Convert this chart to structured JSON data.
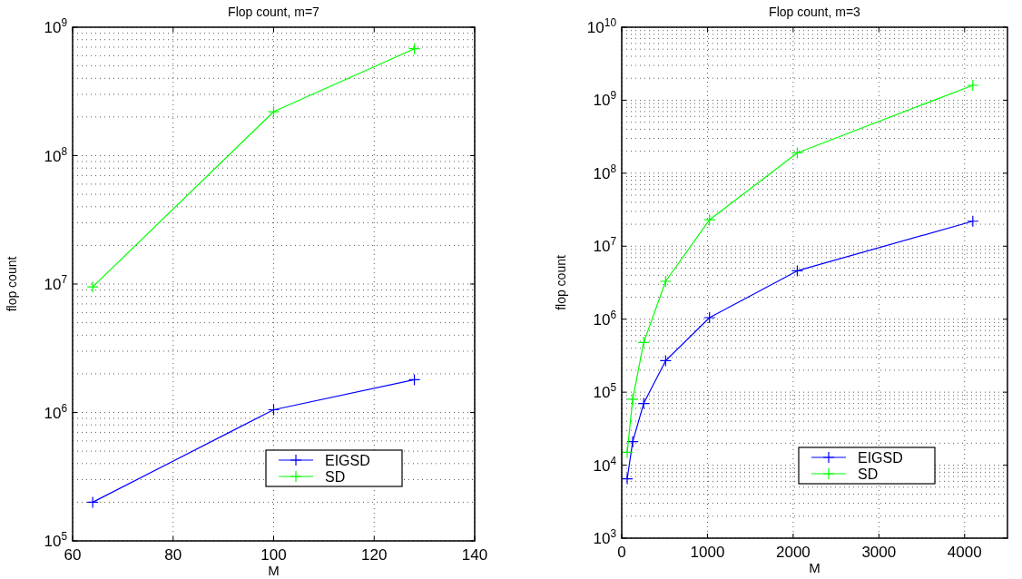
{
  "chart_data": [
    {
      "type": "line",
      "title": "Flop count, m=7",
      "xlabel": "M",
      "ylabel": "flop count",
      "log": "y",
      "grid": true,
      "legend": "bottom right",
      "marker": "cross",
      "line_style": "solid",
      "xlim": [
        60,
        140
      ],
      "xticks": [
        60,
        80,
        100,
        120,
        140
      ],
      "ylim": [
        100000,
        1000000000
      ],
      "yticks": [
        {
          "value": 100000,
          "label": "10$^{5}$"
        },
        {
          "value": 1000000,
          "label": "10$^{6}$"
        },
        {
          "value": 10000000,
          "label": "10$^{7}$"
        },
        {
          "value": 100000000,
          "label": "10$^{8}$"
        },
        {
          "value": 1000000000,
          "label": "10$^{9}$"
        }
      ],
      "x": [
        64,
        100,
        128
      ],
      "series": [
        {
          "name": "EIGSD",
          "color": "#0000ff",
          "values": [
            200000,
            1050000,
            1800000
          ]
        },
        {
          "name": "SD",
          "color": "#00ff00",
          "values": [
            9500000,
            220000000,
            680000000
          ]
        }
      ]
    },
    {
      "type": "line",
      "title": "Flop count, m=3",
      "xlabel": "M",
      "ylabel": "flop count",
      "log": "y",
      "grid": true,
      "legend": "bottom right",
      "marker": "cross",
      "line_style": "solid",
      "xlim": [
        0,
        4500
      ],
      "xticks": [
        0,
        1000,
        2000,
        3000,
        4000
      ],
      "ylim": [
        1000,
        10000000000
      ],
      "yticks": [
        {
          "value": 1000,
          "label": "10$^{3}$"
        },
        {
          "value": 10000,
          "label": "10$^{4}$"
        },
        {
          "value": 100000,
          "label": "10$^{5}$"
        },
        {
          "value": 1000000,
          "label": "10$^{6}$"
        },
        {
          "value": 10000000,
          "label": "10$^{7}$"
        },
        {
          "value": 100000000,
          "label": "10$^{8}$"
        },
        {
          "value": 1000000000,
          "label": "10$^{9}$"
        },
        {
          "value": 10000000000,
          "label": "10$^{10}$"
        }
      ],
      "x": [
        64,
        128,
        256,
        512,
        1024,
        2048,
        4096
      ],
      "series": [
        {
          "name": "EIGSD",
          "color": "#0000ff",
          "values": [
            6500,
            21000,
            70000,
            270000,
            1050000,
            4600000,
            22000000
          ]
        },
        {
          "name": "SD",
          "color": "#00ff00",
          "values": [
            15000,
            80000,
            480000,
            3300000,
            23000000,
            190000000,
            1600000000
          ]
        }
      ]
    }
  ]
}
